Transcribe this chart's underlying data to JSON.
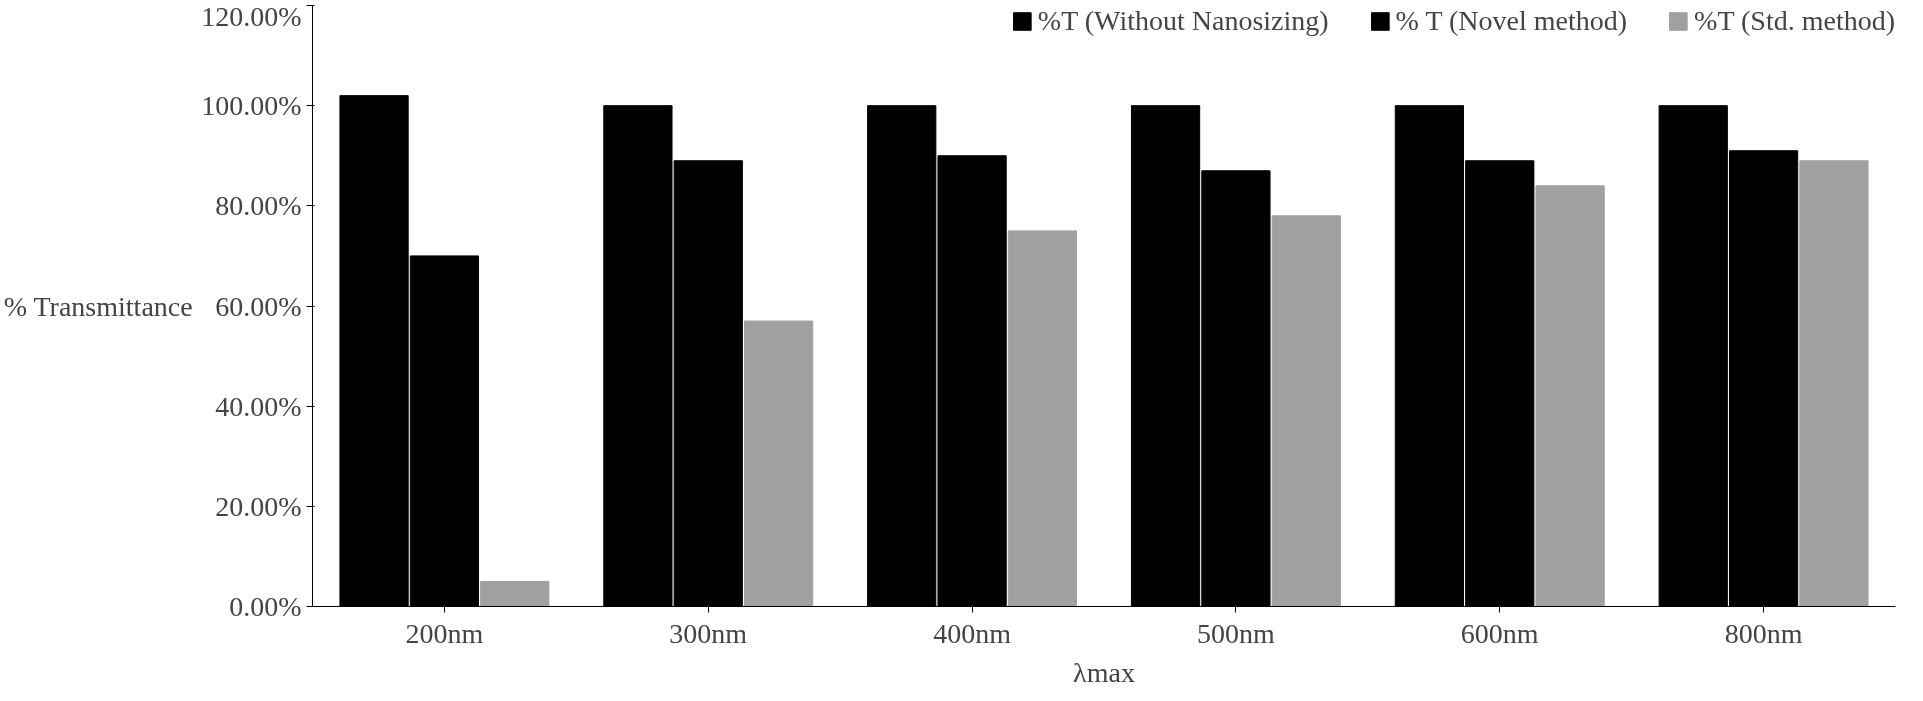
{
  "chart_data": {
    "type": "bar",
    "xlabel": "λmax",
    "ylabel": "% Transmittance",
    "categories": [
      "200nm",
      "300nm",
      "400nm",
      "500nm",
      "600nm",
      "800nm"
    ],
    "series": [
      {
        "name": "%T (Without Nanosizing)",
        "color": "#000000",
        "values": [
          102,
          100,
          100,
          100,
          100,
          100
        ]
      },
      {
        "name": "% T (Novel method)",
        "color": "#000000",
        "values": [
          70,
          89,
          90,
          87,
          89,
          91
        ]
      },
      {
        "name": "%T (Std. method)",
        "color": "#a0a0a0",
        "values": [
          5,
          57,
          75,
          78,
          84,
          89
        ]
      }
    ],
    "ylim": [
      0,
      120
    ],
    "yticks": [
      {
        "value": 0,
        "label": "0.00%"
      },
      {
        "value": 20,
        "label": "20.00%"
      },
      {
        "value": 40,
        "label": "40.00%"
      },
      {
        "value": 60,
        "label": "60.00%"
      },
      {
        "value": 80,
        "label": "80.00%"
      },
      {
        "value": 100,
        "label": "100.00%"
      },
      {
        "value": 120,
        "label": "120.00%"
      }
    ],
    "grid": false,
    "legend": "top"
  }
}
